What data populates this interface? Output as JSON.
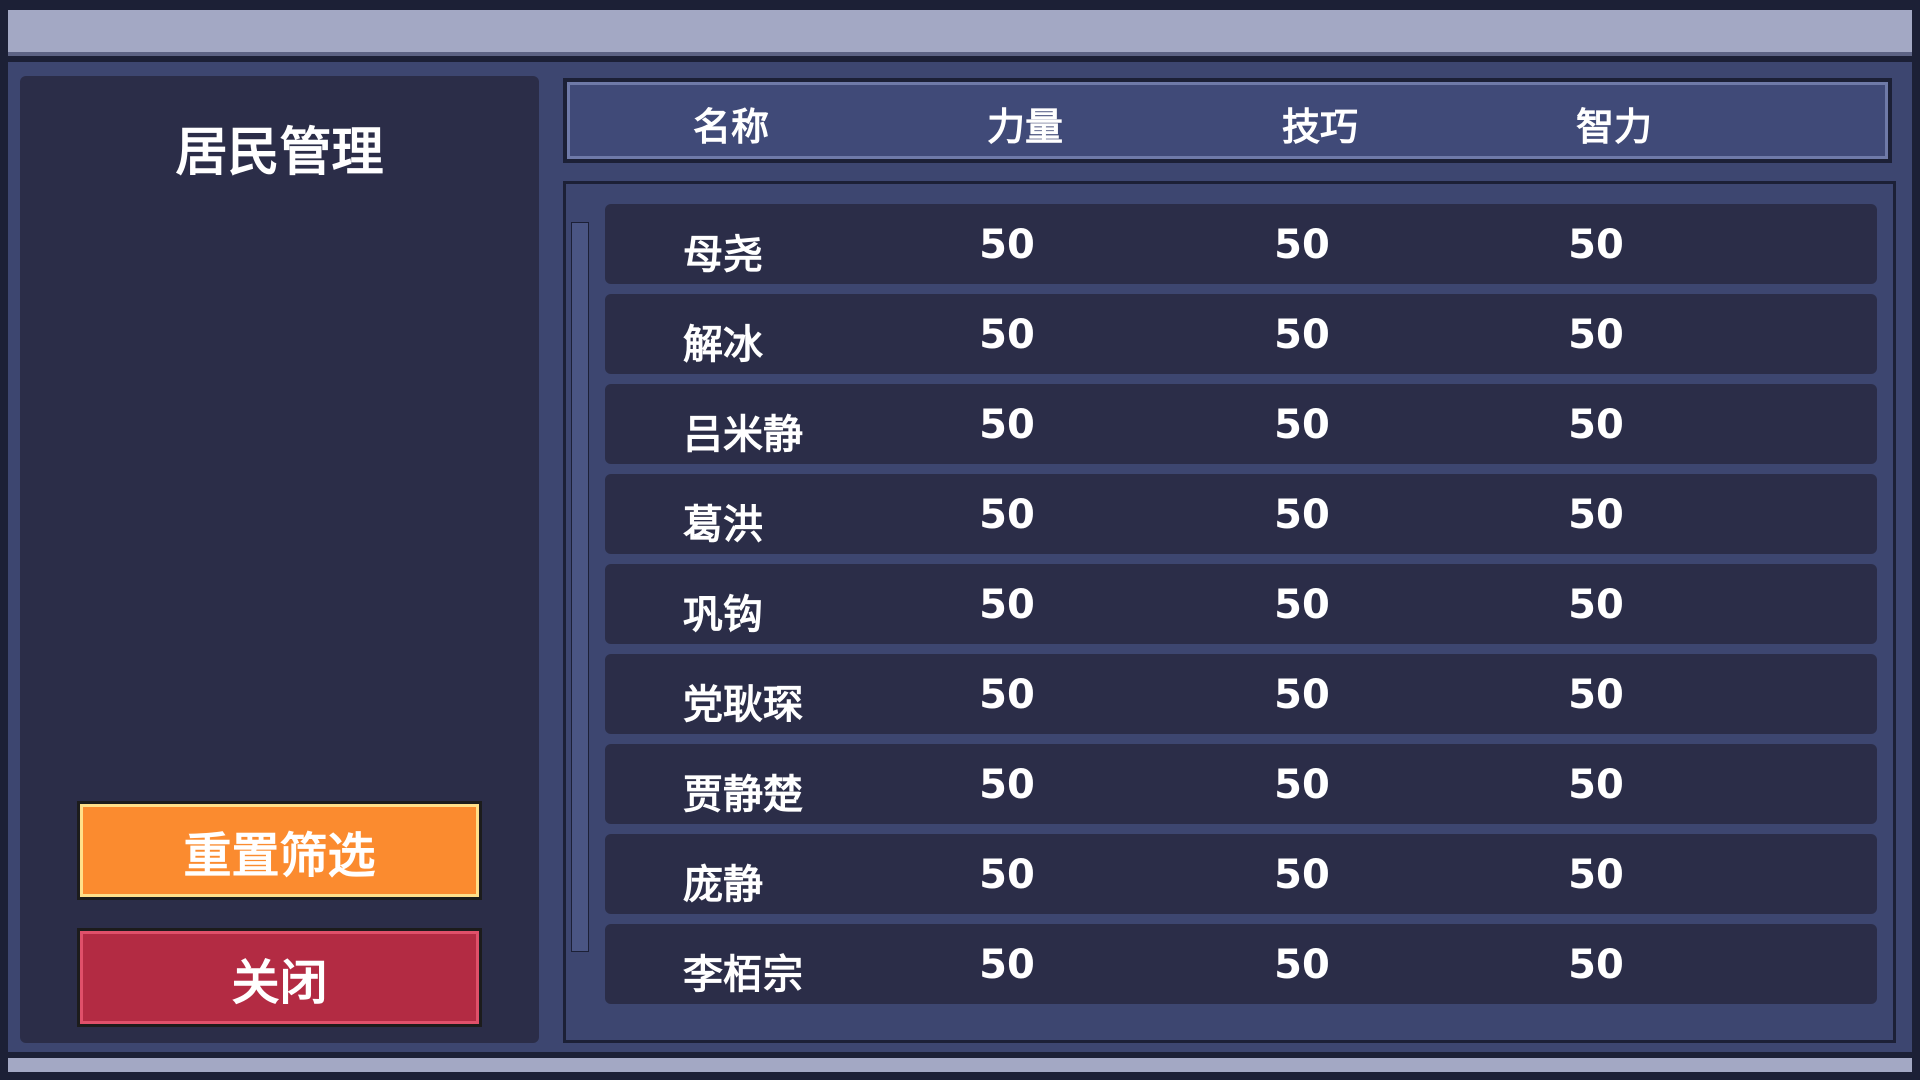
{
  "panel": {
    "title": "居民管理"
  },
  "buttons": {
    "reset": "重置筛选",
    "close": "关闭"
  },
  "table": {
    "columns": [
      "名称",
      "力量",
      "技巧",
      "智力"
    ],
    "rows": [
      [
        "母尧",
        50,
        50,
        50
      ],
      [
        "解冰",
        50,
        50,
        50
      ],
      [
        "吕米静",
        50,
        50,
        50
      ],
      [
        "葛洪",
        50,
        50,
        50
      ],
      [
        "巩钩",
        50,
        50,
        50
      ],
      [
        "党耿琛",
        50,
        50,
        50
      ],
      [
        "贾静楚",
        50,
        50,
        50
      ],
      [
        "庞静",
        50,
        50,
        50
      ],
      [
        "李栢宗",
        50,
        50,
        50
      ]
    ]
  }
}
